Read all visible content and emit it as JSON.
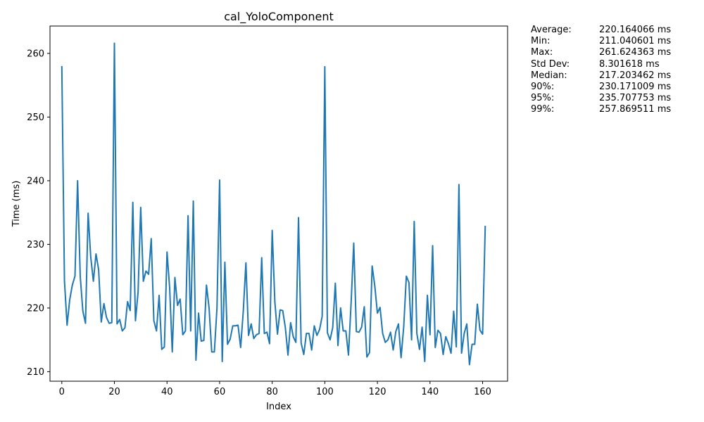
{
  "chart_data": {
    "type": "line",
    "title": "cal_YoloComponent",
    "xlabel": "Index",
    "ylabel": "Time (ms)",
    "xlim": [
      -4.5,
      169.5
    ],
    "ylim": [
      208.5,
      264.3
    ],
    "xticks": [
      0,
      20,
      40,
      60,
      80,
      100,
      120,
      140,
      160
    ],
    "yticks": [
      210,
      220,
      230,
      240,
      250,
      260
    ],
    "grid": false,
    "series": [
      {
        "color": "#1f77b4",
        "values": [
          257.9,
          224.3,
          217.3,
          221.3,
          223.6,
          225.0,
          240.0,
          225.0,
          219.5,
          217.6,
          234.9,
          228.0,
          224.2,
          228.5,
          226.0,
          217.8,
          220.7,
          218.5,
          217.6,
          217.7,
          261.6,
          217.5,
          218.2,
          216.4,
          216.9,
          221.0,
          219.6,
          236.6,
          218.0,
          222.5,
          235.8,
          224.2,
          225.8,
          225.3,
          230.9,
          218.0,
          216.4,
          222.0,
          213.5,
          213.9,
          228.8,
          223.2,
          213.1,
          224.8,
          220.4,
          221.4,
          215.8,
          216.4,
          234.5,
          216.4,
          236.8,
          211.8,
          219.2,
          214.8,
          214.9,
          223.6,
          220.0,
          213.1,
          213.1,
          220.0,
          240.1,
          211.6,
          227.2,
          214.3,
          215.1,
          217.2,
          217.2,
          217.3,
          213.8,
          219.5,
          227.1,
          215.7,
          217.5,
          215.2,
          215.8,
          216.0,
          227.9,
          216.0,
          216.2,
          214.4,
          232.2,
          221.0,
          215.9,
          219.7,
          219.6,
          216.9,
          212.6,
          217.7,
          215.5,
          214.6,
          234.2,
          214.5,
          212.7,
          216.0,
          216.0,
          213.4,
          217.2,
          215.7,
          216.6,
          218.7,
          257.9,
          216.1,
          215.0,
          216.9,
          223.9,
          214.1,
          220.0,
          216.4,
          216.4,
          212.6,
          220.8,
          230.2,
          216.3,
          216.2,
          217.0,
          220.2,
          212.3,
          213.0,
          226.6,
          223.5,
          219.2,
          220.1,
          216.0,
          214.6,
          215.0,
          216.2,
          213.4,
          216.3,
          217.5,
          212.2,
          217.0,
          225.0,
          224.0,
          215.0,
          233.6,
          216.0,
          213.5,
          217.0,
          211.6,
          222.0,
          215.8,
          229.8,
          213.8,
          216.5,
          216.0,
          212.7,
          215.5,
          214.4,
          212.9,
          219.5,
          213.9,
          239.4,
          212.9,
          216.0,
          217.5,
          211.1,
          214.3,
          214.3,
          220.6,
          216.5,
          215.9,
          232.8
        ]
      }
    ]
  },
  "stats": [
    {
      "label": "Average:",
      "value": "220.164066 ms"
    },
    {
      "label": "Min:",
      "value": "211.040601 ms"
    },
    {
      "label": "Max:",
      "value": "261.624363 ms"
    },
    {
      "label": "Std Dev:",
      "value": "8.301618 ms"
    },
    {
      "label": "Median:",
      "value": "217.203462 ms"
    },
    {
      "label": "90%:",
      "value": "230.171009 ms"
    },
    {
      "label": "95%:",
      "value": "235.707753 ms"
    },
    {
      "label": "99%:",
      "value": "257.869511 ms"
    }
  ]
}
